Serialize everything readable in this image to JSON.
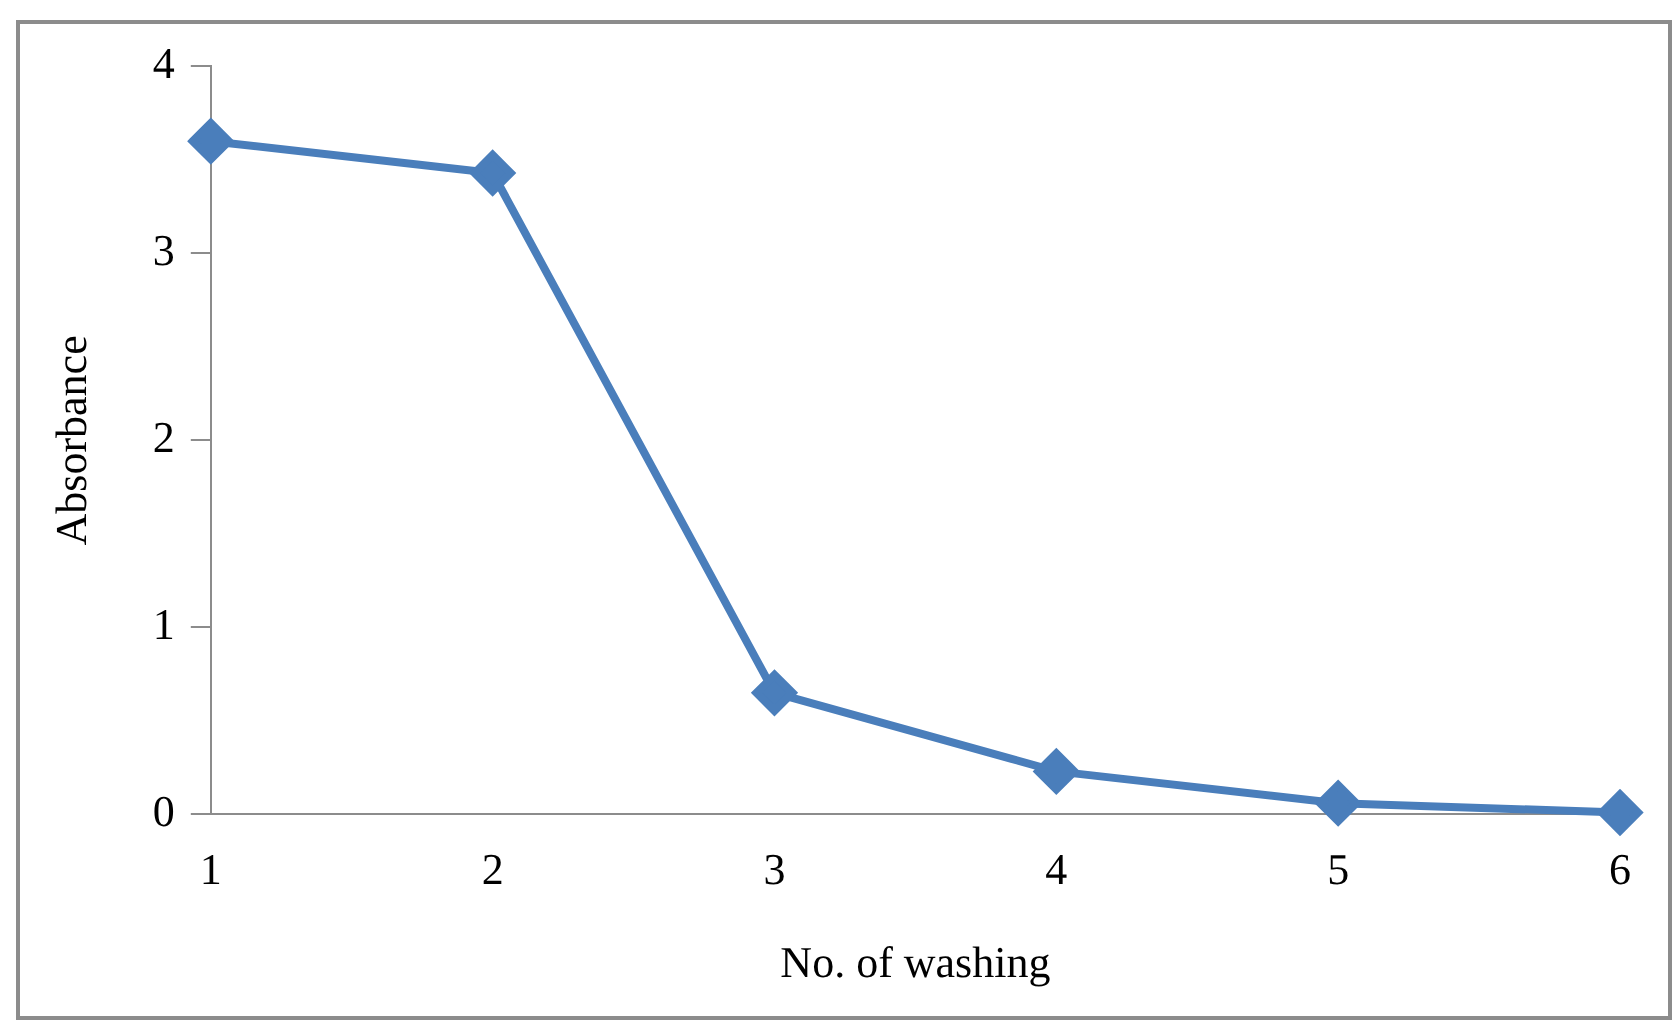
{
  "chart_data": {
    "type": "line",
    "xlabel": "No. of washing",
    "ylabel": "Absorbance",
    "categories": [
      "1",
      "2",
      "3",
      "4",
      "5",
      "6"
    ],
    "series": [
      {
        "color": "#4a7ebb",
        "values": [
          3.6,
          3.43,
          0.65,
          0.23,
          0.06,
          0.01
        ]
      }
    ],
    "ylim": [
      0,
      4
    ],
    "yticks": [
      0,
      1,
      2,
      3,
      4
    ],
    "grid": false,
    "legend": false,
    "marker": "diamond",
    "line_style": "solid"
  }
}
